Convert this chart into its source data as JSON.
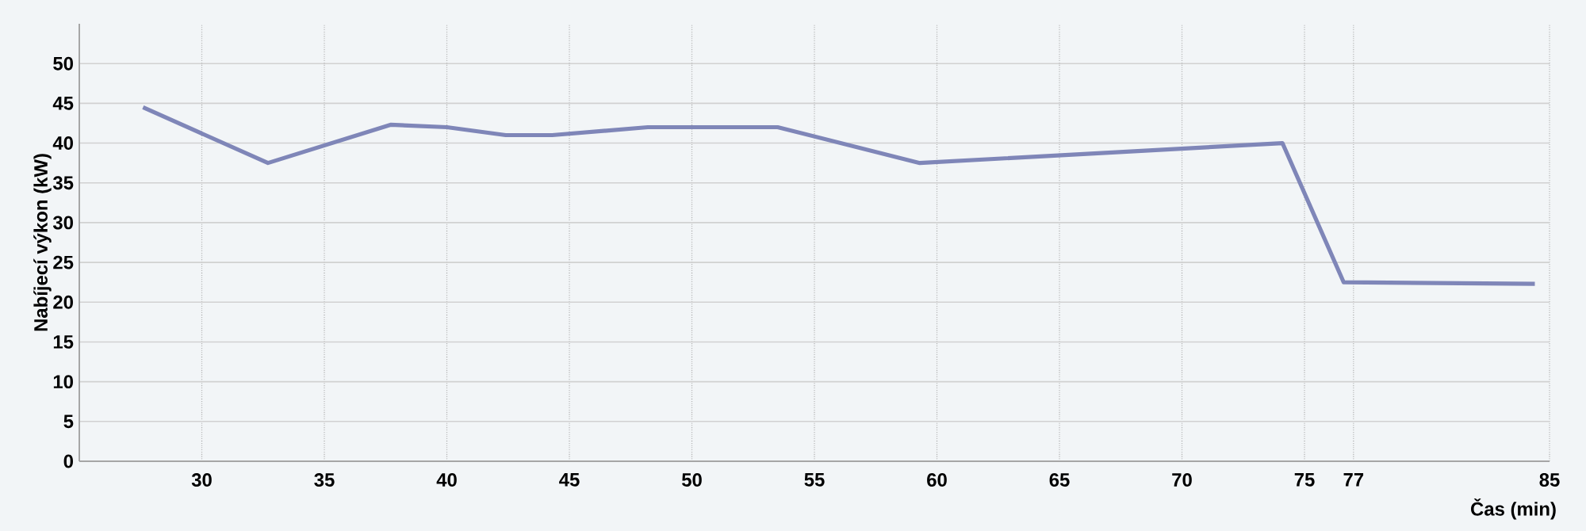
{
  "chart_data": {
    "type": "line",
    "xlabel": "Čas (min)",
    "ylabel": "Nabíjecí výkon (kW)",
    "x": [
      27.6,
      32.7,
      37.7,
      40.0,
      42.4,
      44.3,
      48.2,
      53.5,
      59.3,
      74.1,
      76.6,
      84.4
    ],
    "series": [
      {
        "color": "#7f86b8",
        "values": [
          44.5,
          37.5,
          42.3,
          42,
          41,
          41,
          42,
          42,
          37.5,
          40,
          22.5,
          22.3
        ]
      }
    ],
    "xlim": [
      25,
      85
    ],
    "ylim": [
      0,
      55
    ],
    "xticks": [
      30,
      35,
      40,
      45,
      50,
      55,
      60,
      65,
      70,
      75,
      77,
      85
    ],
    "yticks": [
      0,
      5,
      10,
      15,
      20,
      25,
      30,
      35,
      40,
      45,
      50
    ],
    "grid": true,
    "marker": "none",
    "line_style": "solid"
  }
}
